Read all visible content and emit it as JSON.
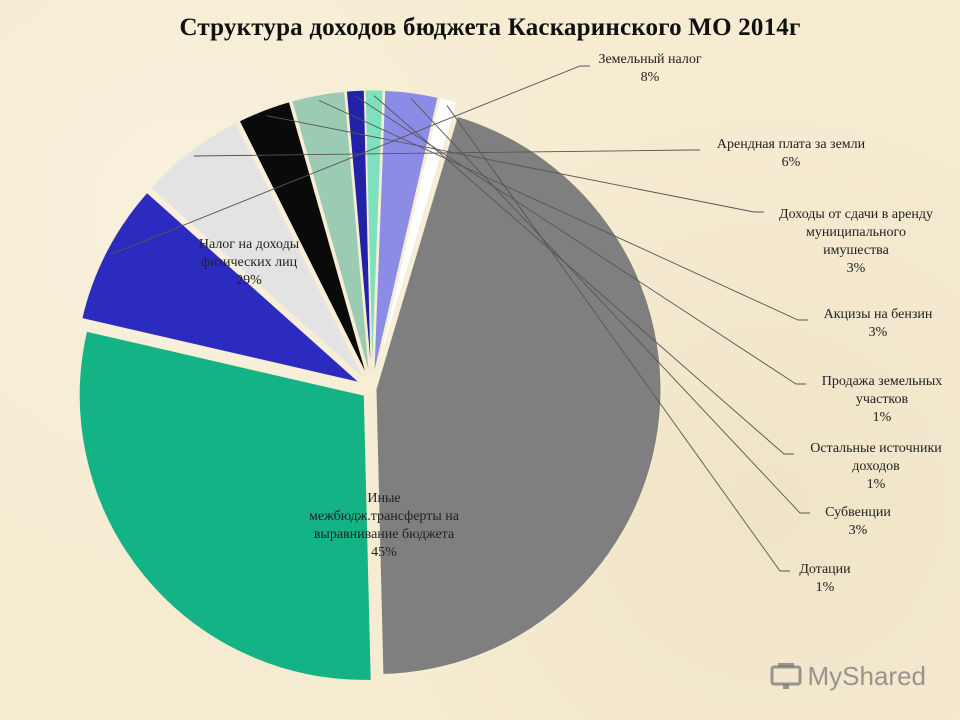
{
  "chart_data": {
    "type": "pie",
    "title": "Структура доходов бюджета Каскаринского МО 2014г",
    "slices": [
      {
        "name": "Земельный налог",
        "label_lines": [
          "Земельный налог"
        ],
        "percent_label": "8%",
        "value": 8,
        "color": "#2b2bbf"
      },
      {
        "name": "Арендная плата за земли",
        "label_lines": [
          "Арендная плата за земли"
        ],
        "percent_label": "6%",
        "value": 6,
        "color": "#e3e3e3"
      },
      {
        "name": "Доходы от сдачи в аренду муниципального имушества",
        "label_lines": [
          "Доходы от сдачи в аренду",
          "муниципального",
          "имушества"
        ],
        "percent_label": "3%",
        "value": 3,
        "color": "#0a0a0a"
      },
      {
        "name": "Акцизы на бензин",
        "label_lines": [
          "Акцизы на бензин"
        ],
        "percent_label": "3%",
        "value": 3,
        "color": "#9ccbb3"
      },
      {
        "name": "Продажа земельных участков",
        "label_lines": [
          "Продажа земельных",
          "участков"
        ],
        "percent_label": "1%",
        "value": 1,
        "color": "#2222a8"
      },
      {
        "name": "Остальные источники доходов",
        "label_lines": [
          "Остальные источники",
          "доходов"
        ],
        "percent_label": "1%",
        "value": 1,
        "color": "#7fe0bd"
      },
      {
        "name": "Субвенции",
        "label_lines": [
          "Субвенции"
        ],
        "percent_label": "3%",
        "value": 3,
        "color": "#8c8ce6"
      },
      {
        "name": "Дотации",
        "label_lines": [
          "Дотации"
        ],
        "percent_label": "1%",
        "value": 1,
        "color": "#ffffff"
      },
      {
        "name": "Иные межбюдж.трансферты на выравнивание бюджета",
        "label_lines": [
          "Иные",
          "межбюдж.трансферты на",
          "выравнивание бюджета"
        ],
        "percent_label": "45%",
        "value": 45,
        "color": "#7f7f7f"
      },
      {
        "name": "Налог на доходы физических лиц",
        "label_lines": [
          "Налог на доходы",
          "физических лиц"
        ],
        "percent_label": "29%",
        "value": 29,
        "color": "#14b386"
      }
    ]
  },
  "watermark": {
    "text": "MyShared",
    "icon": "presentation-icon"
  }
}
